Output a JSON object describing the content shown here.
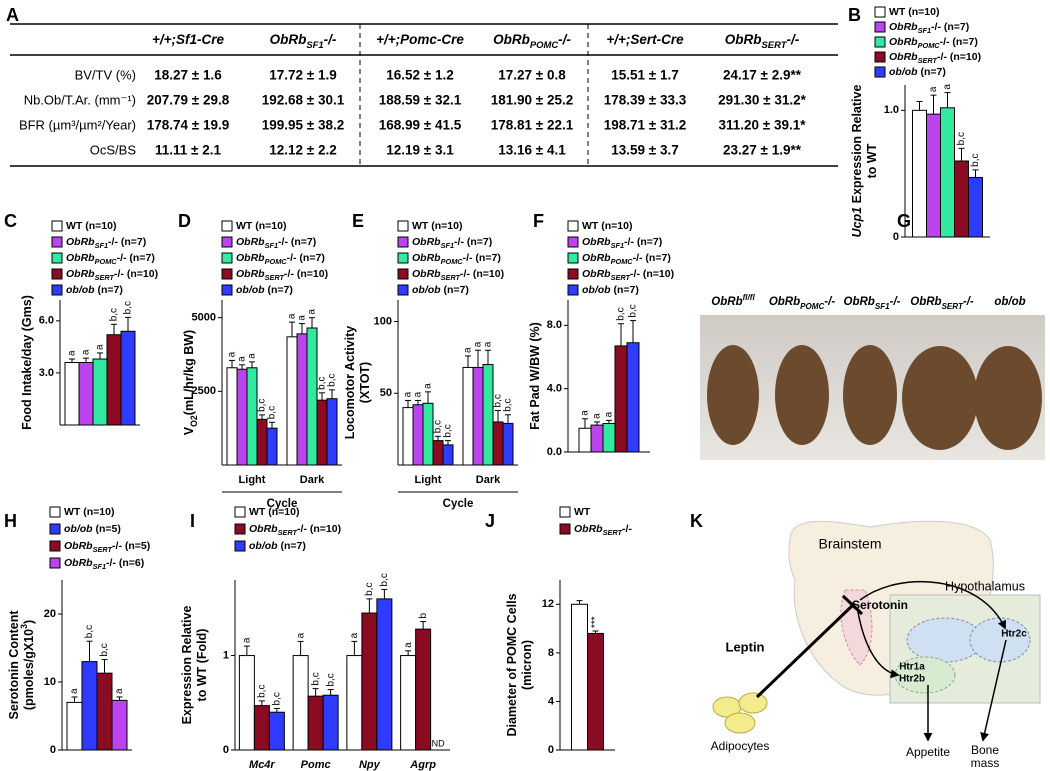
{
  "table": {
    "panel": "A",
    "header": [
      [
        {
          "t": "+/+;Sf1-Cre"
        }
      ],
      [
        {
          "t": "ObRb"
        },
        {
          "t": "SF1",
          "sub": true
        },
        {
          "t": "-/-"
        }
      ],
      [
        {
          "t": "+/+;Pomc-Cre"
        }
      ],
      [
        {
          "t": "ObRb"
        },
        {
          "t": "POMC",
          "sub": true
        },
        {
          "t": "-/-"
        }
      ],
      [
        {
          "t": "+/+;Sert-Cre"
        }
      ],
      [
        {
          "t": "ObRb"
        },
        {
          "t": "SERT",
          "sub": true
        },
        {
          "t": "-/-"
        }
      ]
    ],
    "highlight_column": 5,
    "highlight_color": "#e0102a",
    "rows": [
      {
        "label": "BV/TV (%)",
        "cells": [
          "18.27 ± 1.6",
          "17.72 ± 1.9",
          "16.52 ± 1.2",
          "17.27 ± 0.8",
          "15.51 ± 1.7",
          "24.17 ± 2.9**"
        ]
      },
      {
        "label": "Nb.Ob/T.Ar. (mm⁻¹)",
        "cells": [
          "207.79 ± 29.8",
          "192.68 ± 30.1",
          "188.59 ± 32.1",
          "181.90 ± 25.2",
          "178.39 ± 33.3",
          "291.30 ± 31.2*"
        ]
      },
      {
        "label": "BFR (µm³/µm²/Year)",
        "cells": [
          "178.74 ± 19.9",
          "199.95 ± 38.2",
          "168.99 ± 41.5",
          "178.81 ± 22.1",
          "198.71 ± 31.2",
          "311.20 ± 39.1*"
        ]
      },
      {
        "label": "OcS/BS",
        "cells": [
          "11.11 ± 2.1",
          "12.12 ± 2.2",
          "12.19 ± 3.1",
          "13.16 ± 4.1",
          "13.59 ± 3.7",
          "23.27 ± 1.9**"
        ]
      }
    ]
  },
  "chart_data": [
    {
      "type": "bar",
      "panel": "B",
      "ylabel": [
        [
          {
            "t": "Ucp1",
            "i": true
          },
          {
            "t": " Expression Relative"
          }
        ],
        [
          {
            "t": "to WT"
          }
        ]
      ],
      "ylim": [
        0,
        1.2
      ],
      "yticks": [
        0,
        {
          "value": 1,
          "label": "1.0"
        }
      ],
      "series": [
        {
          "name": [
            {
              "t": "WT (n=10)"
            }
          ],
          "color": "#ffffff",
          "value": 1.0,
          "error": 0.07
        },
        {
          "name": [
            {
              "t": "ObRb",
              "i": true
            },
            {
              "t": "SF1",
              "sub": true,
              "i": true
            },
            {
              "t": "-/- (n=7)"
            }
          ],
          "color": "#bb44ee",
          "value": 0.97,
          "error": 0.15,
          "label": "a"
        },
        {
          "name": [
            {
              "t": "ObRb",
              "i": true
            },
            {
              "t": "POMC",
              "sub": true,
              "i": true
            },
            {
              "t": "-/- (n=7)"
            }
          ],
          "color": "#33e8a0",
          "value": 1.02,
          "error": 0.12,
          "label": "a"
        },
        {
          "name": [
            {
              "t": "ObRb",
              "i": true
            },
            {
              "t": "SERT",
              "sub": true,
              "i": true
            },
            {
              "t": "-/- (n=10)"
            }
          ],
          "color": "#8b0b22",
          "value": 0.6,
          "error": 0.1,
          "label": "b,c"
        },
        {
          "name": [
            {
              "t": "ob/ob",
              "i": true
            },
            {
              "t": " (n=7)"
            }
          ],
          "color": "#2f3cff",
          "value": 0.47,
          "error": 0.06,
          "label": "b,c"
        }
      ]
    },
    {
      "type": "bar",
      "panel": "C",
      "ylabel": [
        [
          {
            "t": "Food Intake/day (Gms)"
          }
        ]
      ],
      "ylim": [
        0,
        7.2
      ],
      "yticks": [
        {
          "value": 3,
          "label": "3.0"
        },
        {
          "value": 6,
          "label": "6.0"
        }
      ],
      "series": [
        {
          "name": [
            {
              "t": "WT (n=10)"
            }
          ],
          "color": "#ffffff",
          "value": 3.6,
          "error": 0.2,
          "label": "a"
        },
        {
          "name": [
            {
              "t": "ObRb",
              "i": true
            },
            {
              "t": "SF1",
              "sub": true,
              "i": true
            },
            {
              "t": "-/- (n=7)"
            }
          ],
          "color": "#bb44ee",
          "value": 3.6,
          "error": 0.25,
          "label": "a"
        },
        {
          "name": [
            {
              "t": "ObRb",
              "i": true
            },
            {
              "t": "POMC",
              "sub": true,
              "i": true
            },
            {
              "t": "-/- (n=7)"
            }
          ],
          "color": "#33e8a0",
          "value": 3.8,
          "error": 0.35,
          "label": "a"
        },
        {
          "name": [
            {
              "t": "ObRb",
              "i": true
            },
            {
              "t": "SERT",
              "sub": true,
              "i": true
            },
            {
              "t": "-/- (n=10)"
            }
          ],
          "color": "#8b0b22",
          "value": 5.2,
          "error": 0.6,
          "label": "b,c"
        },
        {
          "name": [
            {
              "t": "ob/ob",
              "i": true
            },
            {
              "t": " (n=7)"
            }
          ],
          "color": "#2f3cff",
          "value": 5.4,
          "error": 0.8,
          "label": "b,c"
        }
      ]
    },
    {
      "type": "bar",
      "panel": "D",
      "ylabel": [
        [
          {
            "t": "V"
          },
          {
            "t": "O2",
            "sub": true
          },
          {
            "t": "(mL/hr/kg BW)"
          }
        ]
      ],
      "categories": [
        "Light",
        "Dark"
      ],
      "xlabel": "Cycle",
      "ylim": [
        0,
        5600
      ],
      "yticks": [
        2500,
        5000
      ],
      "series": [
        {
          "name": [
            {
              "t": "WT (n=10)"
            }
          ],
          "color": "#ffffff",
          "values": [
            3300,
            4350
          ],
          "errors": [
            250,
            500
          ],
          "labels": [
            "a",
            "a"
          ]
        },
        {
          "name": [
            {
              "t": "ObRb",
              "i": true
            },
            {
              "t": "SF1",
              "sub": true,
              "i": true
            },
            {
              "t": "-/- (n=7)"
            }
          ],
          "color": "#bb44ee",
          "values": [
            3250,
            4450
          ],
          "errors": [
            150,
            350
          ],
          "labels": [
            "a",
            "a"
          ]
        },
        {
          "name": [
            {
              "t": "ObRb",
              "i": true
            },
            {
              "t": "POMC",
              "sub": true,
              "i": true
            },
            {
              "t": "-/- (n=7)"
            }
          ],
          "color": "#33e8a0",
          "values": [
            3300,
            4650
          ],
          "errors": [
            200,
            350
          ],
          "labels": [
            "a",
            "a"
          ]
        },
        {
          "name": [
            {
              "t": "ObRb",
              "i": true
            },
            {
              "t": "SERT",
              "sub": true,
              "i": true
            },
            {
              "t": "-/- (n=10)"
            }
          ],
          "color": "#8b0b22",
          "values": [
            1550,
            2200
          ],
          "errors": [
            150,
            250
          ],
          "labels": [
            "b,c",
            "b,c"
          ]
        },
        {
          "name": [
            {
              "t": "ob/ob",
              "i": true
            },
            {
              "t": " (n=7)"
            }
          ],
          "color": "#2f3cff",
          "values": [
            1250,
            2250
          ],
          "errors": [
            200,
            300
          ],
          "labels": [
            "b,c",
            "b,c"
          ]
        }
      ]
    },
    {
      "type": "bar",
      "panel": "E",
      "ylabel": [
        [
          {
            "t": "Locomotor Activity"
          }
        ],
        [
          {
            "t": "(XTOT)"
          }
        ]
      ],
      "categories": [
        "Light",
        "Dark"
      ],
      "xlabel": "Cycle",
      "ylim": [
        0,
        115
      ],
      "yticks": [
        50,
        100
      ],
      "series": [
        {
          "name": [
            {
              "t": "WT (n=10)"
            }
          ],
          "color": "#ffffff",
          "values": [
            40,
            68
          ],
          "errors": [
            5,
            8
          ],
          "labels": [
            "a",
            "a"
          ]
        },
        {
          "name": [
            {
              "t": "ObRb",
              "i": true
            },
            {
              "t": "SF1",
              "sub": true,
              "i": true
            },
            {
              "t": "-/- (n=7)"
            }
          ],
          "color": "#bb44ee",
          "values": [
            42,
            68
          ],
          "errors": [
            3,
            12
          ],
          "labels": [
            "a",
            "a"
          ]
        },
        {
          "name": [
            {
              "t": "ObRb",
              "i": true
            },
            {
              "t": "POMC",
              "sub": true,
              "i": true
            },
            {
              "t": "-/- (n=7)"
            }
          ],
          "color": "#33e8a0",
          "values": [
            43,
            70
          ],
          "errors": [
            8,
            10
          ],
          "labels": [
            "a",
            "a"
          ]
        },
        {
          "name": [
            {
              "t": "ObRb",
              "i": true
            },
            {
              "t": "SERT",
              "sub": true,
              "i": true
            },
            {
              "t": "-/- (n=10)"
            }
          ],
          "color": "#8b0b22",
          "values": [
            17,
            30
          ],
          "errors": [
            3,
            8
          ],
          "labels": [
            "b,c",
            "b,c"
          ]
        },
        {
          "name": [
            {
              "t": "ob/ob",
              "i": true
            },
            {
              "t": " (n=7)"
            }
          ],
          "color": "#2f3cff",
          "values": [
            14,
            29
          ],
          "errors": [
            3,
            6
          ],
          "labels": [
            "b,c",
            "b,c"
          ]
        }
      ]
    },
    {
      "type": "bar",
      "panel": "F",
      "ylabel": [
        [
          {
            "t": "Fat Pad W/BW (%)"
          }
        ]
      ],
      "ylim": [
        0,
        9.6
      ],
      "yticks": [
        {
          "value": 0,
          "label": "0.0"
        },
        {
          "value": 4,
          "label": "4.0"
        },
        {
          "value": 8,
          "label": "8.0"
        }
      ],
      "series": [
        {
          "name": [
            {
              "t": "WT (n=10)"
            }
          ],
          "color": "#ffffff",
          "value": 1.5,
          "error": 0.6,
          "label": "a"
        },
        {
          "name": [
            {
              "t": "ObRb",
              "i": true
            },
            {
              "t": "SF1",
              "sub": true,
              "i": true
            },
            {
              "t": "-/- (n=7)"
            }
          ],
          "color": "#bb44ee",
          "value": 1.7,
          "error": 0.2,
          "label": "a"
        },
        {
          "name": [
            {
              "t": "ObRb",
              "i": true
            },
            {
              "t": "POMC",
              "sub": true,
              "i": true
            },
            {
              "t": "-/- (n=7)"
            }
          ],
          "color": "#33e8a0",
          "value": 1.8,
          "error": 0.2,
          "label": "a"
        },
        {
          "name": [
            {
              "t": "ObRb",
              "i": true
            },
            {
              "t": "SERT",
              "sub": true,
              "i": true
            },
            {
              "t": "-/- (n=10)"
            }
          ],
          "color": "#8b0b22",
          "value": 6.7,
          "error": 1.4,
          "label": "b,c"
        },
        {
          "name": [
            {
              "t": "ob/ob",
              "i": true
            },
            {
              "t": " (n=7)"
            }
          ],
          "color": "#2f3cff",
          "value": 6.9,
          "error": 1.4,
          "label": "b,c"
        }
      ]
    },
    {
      "type": "bar",
      "panel": "H",
      "ylabel": [
        [
          {
            "t": "Serotonin Content"
          }
        ],
        [
          {
            "t": "(pmoles/gX10"
          },
          {
            "t": "3",
            "sup": true
          },
          {
            "t": ")"
          }
        ]
      ],
      "ylim": [
        0,
        25
      ],
      "yticks": [
        0,
        10,
        20
      ],
      "series": [
        {
          "name": [
            {
              "t": "WT (n=10)"
            }
          ],
          "color": "#ffffff",
          "value": 7.0,
          "error": 0.8,
          "label": "a"
        },
        {
          "name": [
            {
              "t": "ob/ob",
              "i": true
            },
            {
              "t": " (n=5)"
            }
          ],
          "color": "#2f3cff",
          "value": 13.0,
          "error": 3.0,
          "label": "b,c"
        },
        {
          "name": [
            {
              "t": "ObRb",
              "i": true
            },
            {
              "t": "SERT",
              "sub": true,
              "i": true
            },
            {
              "t": "-/- (n=5)"
            }
          ],
          "color": "#8b0b22",
          "value": 11.3,
          "error": 2.0,
          "label": "b,c"
        },
        {
          "name": [
            {
              "t": "ObRb",
              "i": true
            },
            {
              "t": "SF1",
              "sub": true,
              "i": true
            },
            {
              "t": "-/- (n=6)"
            }
          ],
          "color": "#bb44ee",
          "value": 7.3,
          "error": 0.5,
          "label": "a"
        }
      ]
    },
    {
      "type": "bar",
      "panel": "I",
      "ylabel": [
        [
          {
            "t": "Expression Relative"
          }
        ],
        [
          {
            "t": "to WT (Fold)"
          }
        ]
      ],
      "categories": [
        "Mc4r",
        "Pomc",
        "Npy",
        "Agrp"
      ],
      "category_italic": true,
      "ylim": [
        0,
        1.8
      ],
      "yticks": [
        0,
        1
      ],
      "series": [
        {
          "name": [
            {
              "t": "WT (n=10)"
            }
          ],
          "color": "#ffffff",
          "values": [
            1.0,
            1.0,
            1.0,
            1.0
          ],
          "errors": [
            0.1,
            0.15,
            0.15,
            0.05
          ],
          "labels": [
            "a",
            "a",
            "a",
            "a"
          ]
        },
        {
          "name": [
            {
              "t": "ObRb",
              "i": true
            },
            {
              "t": "SERT",
              "sub": true,
              "i": true
            },
            {
              "t": "-/- (n=10)"
            }
          ],
          "color": "#8b0b22",
          "values": [
            0.47,
            0.57,
            1.45,
            1.28
          ],
          "errors": [
            0.05,
            0.08,
            0.15,
            0.08
          ],
          "labels": [
            "b,c",
            "b,c",
            "b,c",
            "b"
          ]
        },
        {
          "name": [
            {
              "t": "ob/ob",
              "i": true
            },
            {
              "t": " (n=7)"
            }
          ],
          "color": "#2f3cff",
          "values": [
            0.4,
            0.58,
            1.6,
            null
          ],
          "errors": [
            0.04,
            0.06,
            0.1,
            null
          ],
          "labels": [
            "b,c",
            "b,c",
            "b,c",
            "ND"
          ]
        }
      ]
    },
    {
      "type": "bar",
      "panel": "J",
      "ylabel": [
        [
          {
            "t": "Diameter of POMC Cells"
          }
        ],
        [
          {
            "t": "(micron)"
          }
        ]
      ],
      "ylim": [
        0,
        14
      ],
      "yticks": [
        0,
        4,
        8,
        12
      ],
      "series": [
        {
          "name": [
            {
              "t": "WT"
            }
          ],
          "color": "#ffffff",
          "value": 12.0,
          "error": 0.3
        },
        {
          "name": [
            {
              "t": "ObRb",
              "i": true
            },
            {
              "t": "SERT",
              "sub": true,
              "i": true
            },
            {
              "t": "-/-"
            }
          ],
          "color": "#8b0b22",
          "value": 9.6,
          "error": 0.2,
          "label": "***"
        }
      ]
    }
  ],
  "photo": {
    "panel": "G",
    "labels": [
      [
        {
          "t": "ObRb"
        },
        {
          "t": "fl/fl",
          "sup": true
        }
      ],
      [
        {
          "t": "ObRb"
        },
        {
          "t": "POMC",
          "sub": true
        },
        {
          "t": "-/-"
        }
      ],
      [
        {
          "t": "ObRb"
        },
        {
          "t": "SF1",
          "sub": true
        },
        {
          "t": "-/-"
        }
      ],
      [
        {
          "t": "ObRb"
        },
        {
          "t": "SERT",
          "sub": true
        },
        {
          "t": "-/-"
        }
      ],
      [
        {
          "t": "ob/ob"
        }
      ]
    ]
  },
  "diagram": {
    "panel": "K",
    "brainstem": "Brainstem",
    "hypothalamus": "Hypothalamus",
    "serotonin": "Serotonin",
    "leptin": "Leptin",
    "adipocytes": "Adipocytes",
    "htr2c": "Htr2c",
    "htr1a": "Htr1a",
    "htr2b": "Htr2b",
    "appetite": "Appetite",
    "bone_mass": [
      "Bone",
      "mass"
    ]
  }
}
